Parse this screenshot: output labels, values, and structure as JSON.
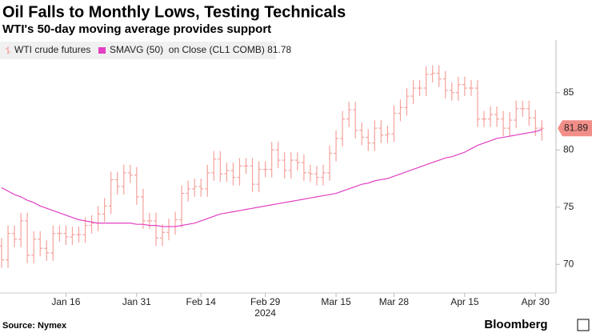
{
  "chart_data": {
    "type": "ohlc",
    "title": "Oil Falls to Monthly Lows, Testing Technicals",
    "subtitle": "WTI's 50-day moving average provides support",
    "categories": [
      null,
      null,
      null,
      null,
      null,
      null,
      null,
      null,
      null,
      null,
      "Jan 16",
      null,
      null,
      null,
      null,
      null,
      null,
      null,
      null,
      null,
      null,
      "Jan 31",
      null,
      null,
      null,
      null,
      null,
      null,
      null,
      null,
      null,
      "Feb 14",
      null,
      null,
      null,
      null,
      null,
      null,
      null,
      null,
      null,
      "Feb 29",
      null,
      null,
      null,
      null,
      null,
      null,
      null,
      null,
      null,
      null,
      "Mar 15",
      null,
      null,
      null,
      null,
      null,
      null,
      null,
      null,
      "Mar 28",
      null,
      null,
      null,
      null,
      null,
      null,
      null,
      null,
      null,
      null,
      "Apr 15",
      null,
      null,
      null,
      null,
      null,
      null,
      null,
      null,
      null,
      null,
      "Apr 30",
      null
    ],
    "x_year_label": "2024",
    "series": [
      {
        "name": "WTI crude futures",
        "color": "#f4a29c",
        "open": [
          71.6,
          70.4,
          72.7,
          72.2,
          73.8,
          70.8,
          72.2,
          71.4,
          71.0,
          72.7,
          72.7,
          72.4,
          72.6,
          72.6,
          73.4,
          73.6,
          74.4,
          75.1,
          77.4,
          76.8,
          78.0,
          77.8,
          75.9,
          73.8,
          73.8,
          72.3,
          72.8,
          73.3,
          73.9,
          76.2,
          76.6,
          76.8,
          76.6,
          78.0,
          79.2,
          77.9,
          78.2,
          77.6,
          78.6,
          78.6,
          77.0,
          78.3,
          78.3,
          80.0,
          79.1,
          78.2,
          79.1,
          78.9,
          78.0,
          77.9,
          77.6,
          78.0,
          79.7,
          81.0,
          82.7,
          83.5,
          81.7,
          81.1,
          80.6,
          81.9,
          81.3,
          81.4,
          83.2,
          83.7,
          84.7,
          85.4,
          85.4,
          86.6,
          86.7,
          86.2,
          85.2,
          85.0,
          85.7,
          85.4,
          85.4,
          82.7,
          82.7,
          83.1,
          82.7,
          81.9,
          82.6,
          83.6,
          83.6,
          82.8,
          81.9
        ],
        "high": [
          72.3,
          73.4,
          73.4,
          74.5,
          74.5,
          72.9,
          72.9,
          72.1,
          73.4,
          73.4,
          73.4,
          73.3,
          73.3,
          74.1,
          74.3,
          75.1,
          75.8,
          78.1,
          78.1,
          78.7,
          78.7,
          78.5,
          76.6,
          74.5,
          74.5,
          73.5,
          74.0,
          74.6,
          76.9,
          77.3,
          77.5,
          77.5,
          78.7,
          79.9,
          79.9,
          78.9,
          78.9,
          79.3,
          79.3,
          79.3,
          79.0,
          79.0,
          80.7,
          80.7,
          79.8,
          79.8,
          79.8,
          79.6,
          78.7,
          78.6,
          78.7,
          80.4,
          81.7,
          83.4,
          84.2,
          84.2,
          82.4,
          81.8,
          82.6,
          82.6,
          82.1,
          83.9,
          84.4,
          85.4,
          86.1,
          86.1,
          87.3,
          87.4,
          87.4,
          86.9,
          85.9,
          86.4,
          86.4,
          86.1,
          86.1,
          83.4,
          83.8,
          83.8,
          83.4,
          83.3,
          84.3,
          84.3,
          84.3,
          83.5,
          82.6
        ],
        "low": [
          69.7,
          69.7,
          71.5,
          71.5,
          70.1,
          70.1,
          70.7,
          70.3,
          70.3,
          72.0,
          71.7,
          71.7,
          71.9,
          71.9,
          72.7,
          72.9,
          73.7,
          74.4,
          76.1,
          76.1,
          77.1,
          75.2,
          73.1,
          73.1,
          71.6,
          71.6,
          72.1,
          72.6,
          73.2,
          75.5,
          75.9,
          75.9,
          75.9,
          77.3,
          77.2,
          77.2,
          76.9,
          76.9,
          77.9,
          76.3,
          76.3,
          77.6,
          77.6,
          78.4,
          77.5,
          77.5,
          78.2,
          77.3,
          77.2,
          76.9,
          76.9,
          77.3,
          79.0,
          80.3,
          82.0,
          81.0,
          80.4,
          79.9,
          79.9,
          80.6,
          80.6,
          80.7,
          82.5,
          83.0,
          84.0,
          84.7,
          84.7,
          85.9,
          85.5,
          84.5,
          84.3,
          84.3,
          84.7,
          84.7,
          82.0,
          82.0,
          82.0,
          82.0,
          81.2,
          81.2,
          81.9,
          82.9,
          82.1,
          81.2,
          80.8
        ],
        "close": [
          70.4,
          72.7,
          72.2,
          73.8,
          70.8,
          72.2,
          71.4,
          71.0,
          72.7,
          72.7,
          72.4,
          72.6,
          72.6,
          73.4,
          73.6,
          74.4,
          75.1,
          77.4,
          76.8,
          78.0,
          77.8,
          75.9,
          73.8,
          73.8,
          72.3,
          72.8,
          73.3,
          73.9,
          76.2,
          76.6,
          76.8,
          76.6,
          78.0,
          79.2,
          77.9,
          78.2,
          77.6,
          78.6,
          78.6,
          77.0,
          78.3,
          78.3,
          80.0,
          79.1,
          78.2,
          79.1,
          78.9,
          78.0,
          77.9,
          77.6,
          78.0,
          79.7,
          81.0,
          82.7,
          83.5,
          81.7,
          81.1,
          80.6,
          81.9,
          81.3,
          81.4,
          83.2,
          83.7,
          84.7,
          85.4,
          85.4,
          86.6,
          86.7,
          86.2,
          85.2,
          85.0,
          85.7,
          85.4,
          85.4,
          82.7,
          82.7,
          83.1,
          82.7,
          81.9,
          82.6,
          83.6,
          83.6,
          82.8,
          81.9,
          81.89
        ]
      },
      {
        "name": "SMAVG (50)  on Close (CL1 COMB) 81.78",
        "color": "#e23fc3",
        "values": [
          76.7,
          76.4,
          76.1,
          75.9,
          75.6,
          75.4,
          75.1,
          74.9,
          74.7,
          74.5,
          74.3,
          74.1,
          73.9,
          73.8,
          73.7,
          73.6,
          73.6,
          73.6,
          73.6,
          73.6,
          73.6,
          73.5,
          73.5,
          73.4,
          73.4,
          73.3,
          73.3,
          73.3,
          73.4,
          73.5,
          73.6,
          73.8,
          74.0,
          74.2,
          74.4,
          74.5,
          74.6,
          74.7,
          74.8,
          74.9,
          75.0,
          75.1,
          75.2,
          75.3,
          75.4,
          75.5,
          75.6,
          75.7,
          75.8,
          75.9,
          76.0,
          76.1,
          76.2,
          76.4,
          76.6,
          76.8,
          77.0,
          77.1,
          77.3,
          77.4,
          77.5,
          77.7,
          77.9,
          78.1,
          78.3,
          78.5,
          78.7,
          78.9,
          79.1,
          79.3,
          79.4,
          79.6,
          79.8,
          80.1,
          80.4,
          80.6,
          80.8,
          81.0,
          81.1,
          81.2,
          81.3,
          81.4,
          81.5,
          81.6,
          81.78
        ]
      }
    ],
    "ylim": [
      67.5,
      89.6
    ],
    "yticks": [
      70,
      75,
      80,
      85
    ],
    "grid": false
  },
  "footer": {
    "source": "Source: Nymex",
    "brand": "Bloomberg"
  }
}
